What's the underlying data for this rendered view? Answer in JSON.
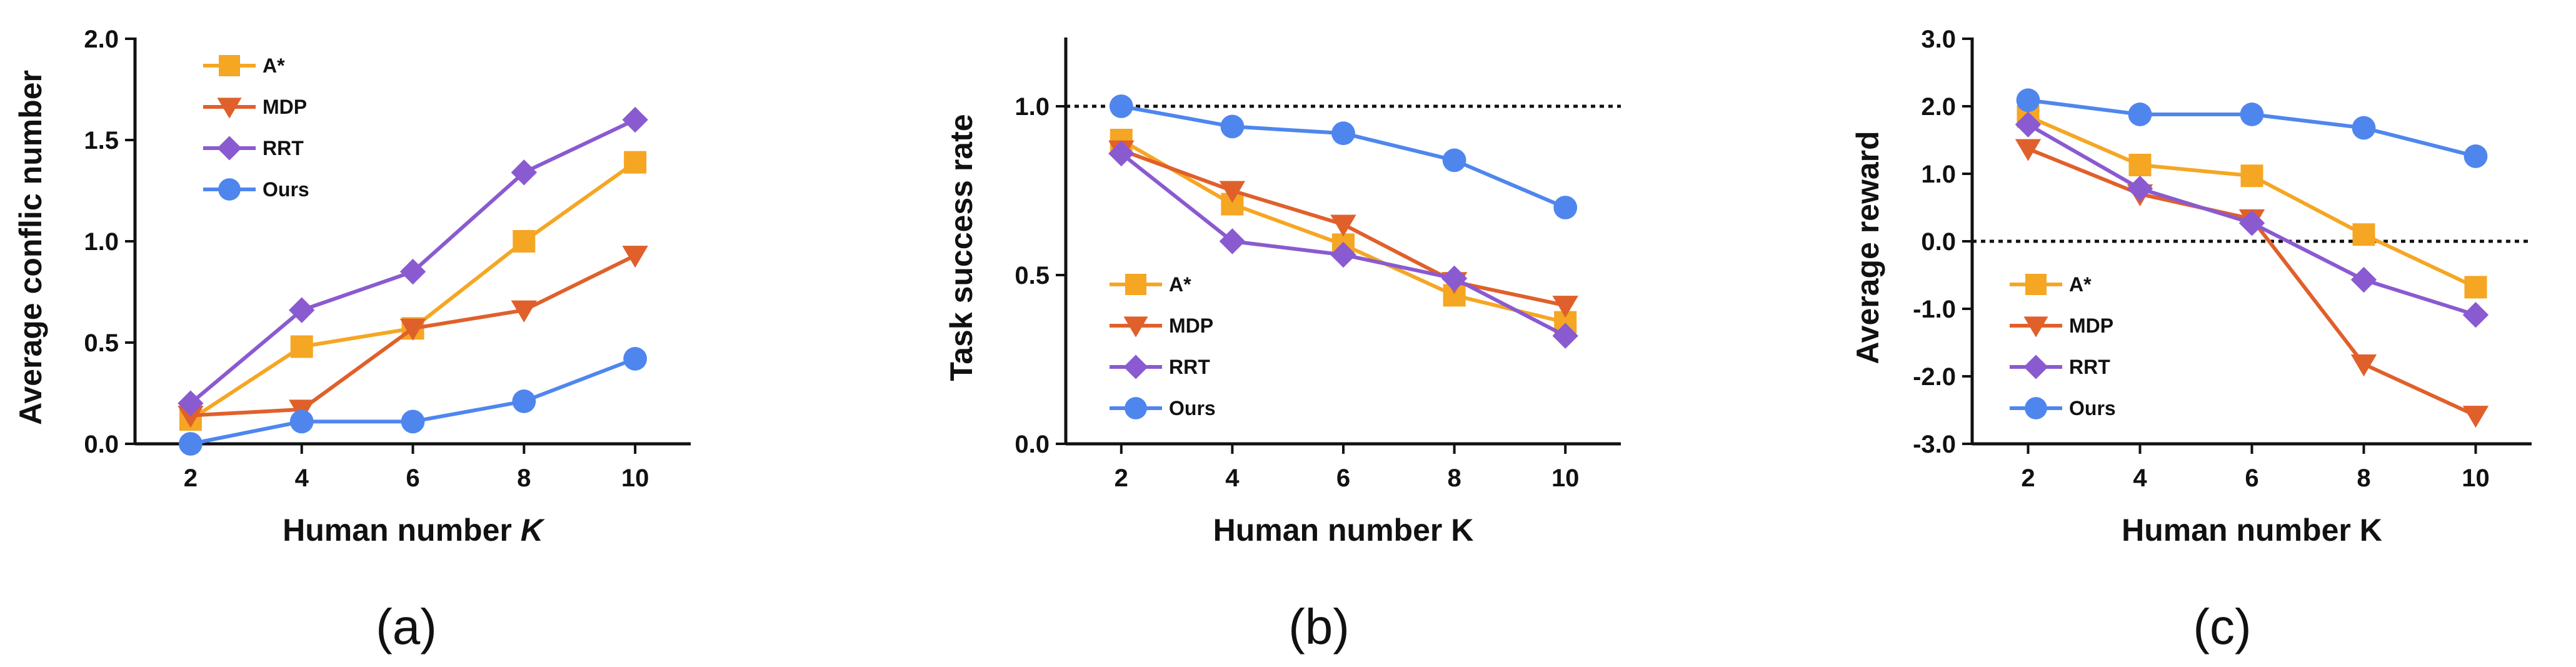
{
  "chart_data": [
    {
      "type": "line",
      "caption": "(a)",
      "xlabel": "Human number",
      "xlabel_var": "K",
      "ylabel": "Average conflic number",
      "x": [
        2,
        4,
        6,
        8,
        10
      ],
      "xlim": [
        1,
        11
      ],
      "ylim": [
        0,
        2
      ],
      "yticks": [
        0,
        0.5,
        1,
        1.5,
        2
      ],
      "ytick_labels": [
        "0.0",
        "0.5",
        "1.0",
        "1.5",
        "2.0"
      ],
      "reference_line": null,
      "legend_position": "top-left",
      "series": [
        {
          "name": "A*",
          "marker": "square",
          "color": "#F5A623",
          "values": [
            0.12,
            0.48,
            0.57,
            1.0,
            1.39
          ]
        },
        {
          "name": "MDP",
          "marker": "triangle-down",
          "color": "#E0602B",
          "values": [
            0.14,
            0.17,
            0.57,
            0.66,
            0.93
          ]
        },
        {
          "name": "RRT",
          "marker": "diamond",
          "color": "#8A5AD0",
          "values": [
            0.2,
            0.66,
            0.85,
            1.34,
            1.6
          ]
        },
        {
          "name": "Ours",
          "marker": "circle",
          "color": "#4F86EE",
          "values": [
            0.0,
            0.11,
            0.11,
            0.21,
            0.42
          ]
        }
      ]
    },
    {
      "type": "line",
      "caption": "(b)",
      "xlabel": "Human number K",
      "xlabel_var": "",
      "ylabel": "Task success rate",
      "x": [
        2,
        4,
        6,
        8,
        10
      ],
      "xlim": [
        1,
        11
      ],
      "ylim": [
        0,
        1.2
      ],
      "yticks": [
        0,
        0.5,
        1.0
      ],
      "ytick_labels": [
        "0.0",
        "0.5",
        "1.0"
      ],
      "reference_line": 1.0,
      "legend_position": "bottom-left",
      "series": [
        {
          "name": "A*",
          "marker": "square",
          "color": "#F5A623",
          "values": [
            0.9,
            0.71,
            0.59,
            0.44,
            0.36
          ]
        },
        {
          "name": "MDP",
          "marker": "triangle-down",
          "color": "#E0602B",
          "values": [
            0.87,
            0.75,
            0.65,
            0.48,
            0.41
          ]
        },
        {
          "name": "RRT",
          "marker": "diamond",
          "color": "#8A5AD0",
          "values": [
            0.86,
            0.6,
            0.56,
            0.49,
            0.32
          ]
        },
        {
          "name": "Ours",
          "marker": "circle",
          "color": "#4F86EE",
          "values": [
            1.0,
            0.94,
            0.92,
            0.84,
            0.7
          ]
        }
      ]
    },
    {
      "type": "line",
      "caption": "(c)",
      "xlabel": "Human number K",
      "xlabel_var": "",
      "ylabel": "Average reward",
      "x": [
        2,
        4,
        6,
        8,
        10
      ],
      "xlim": [
        1,
        11
      ],
      "ylim": [
        -3,
        3
      ],
      "yticks": [
        -3,
        -2,
        -1,
        0,
        1,
        2,
        3
      ],
      "ytick_labels": [
        "-3.0",
        "-2.0",
        "-1.0",
        "0.0",
        "1.0",
        "2.0",
        "3.0"
      ],
      "reference_line": 0,
      "legend_position": "bottom-left",
      "series": [
        {
          "name": "A*",
          "marker": "square",
          "color": "#F5A623",
          "values": [
            1.85,
            1.13,
            0.97,
            0.1,
            -0.68
          ]
        },
        {
          "name": "MDP",
          "marker": "triangle-down",
          "color": "#E0602B",
          "values": [
            1.37,
            0.7,
            0.33,
            -1.82,
            -2.58
          ]
        },
        {
          "name": "RRT",
          "marker": "diamond",
          "color": "#8A5AD0",
          "values": [
            1.73,
            0.78,
            0.27,
            -0.57,
            -1.09
          ]
        },
        {
          "name": "Ours",
          "marker": "circle",
          "color": "#4F86EE",
          "values": [
            2.09,
            1.88,
            1.88,
            1.68,
            1.26
          ]
        }
      ]
    }
  ]
}
